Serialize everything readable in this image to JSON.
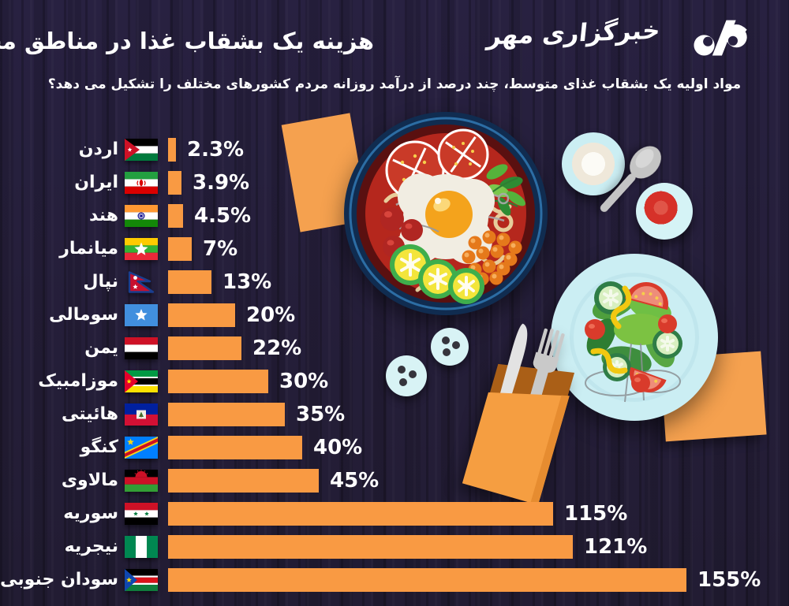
{
  "header": {
    "title": "هزینه یک بشقاب غذا در مناطق مختلف جهان",
    "subtitle": "مواد اولیه یک بشقاب غذای متوسط، چند درصد از درآمد روزانه مردم کشورهای مختلف را تشکیل می دهد؟",
    "agency_name": "خبرگزاری مهر"
  },
  "colors": {
    "background": "#272040",
    "bar": "#F99A43",
    "text": "#FFFFFF",
    "napkin": "#F5A14F"
  },
  "icons": [
    "mehr-logo-mark",
    "ramen-bowl",
    "side-plate",
    "spoon",
    "sauce-dish",
    "salad-plate",
    "salt-shaker",
    "pepper-shaker",
    "cutlery-pocket",
    "napkin",
    "country-flags"
  ],
  "chart_data": {
    "type": "bar",
    "orientation": "horizontal",
    "title": "هزینه یک بشقاب غذا در مناطق مختلف جهان",
    "xlabel": "",
    "ylabel": "",
    "value_unit": "%",
    "xlim": [
      0,
      160
    ],
    "grid": false,
    "legend": false,
    "rows": [
      {
        "label": "اردن",
        "flag": "jordan",
        "value": 2.3,
        "value_label": "2.3%"
      },
      {
        "label": "ایران",
        "flag": "iran",
        "value": 3.9,
        "value_label": "3.9%"
      },
      {
        "label": "هند",
        "flag": "india",
        "value": 4.5,
        "value_label": "4.5%"
      },
      {
        "label": "میانمار",
        "flag": "myanmar",
        "value": 7,
        "value_label": "7%"
      },
      {
        "label": "نپال",
        "flag": "nepal",
        "value": 13,
        "value_label": "13%"
      },
      {
        "label": "سومالی",
        "flag": "somalia",
        "value": 20,
        "value_label": "20%"
      },
      {
        "label": "یمن",
        "flag": "yemen",
        "value": 22,
        "value_label": "22%"
      },
      {
        "label": "موزامبیک",
        "flag": "mozambique",
        "value": 30,
        "value_label": "30%"
      },
      {
        "label": "هائیتی",
        "flag": "haiti",
        "value": 35,
        "value_label": "35%"
      },
      {
        "label": "کنگو",
        "flag": "drcongo",
        "value": 40,
        "value_label": "40%"
      },
      {
        "label": "مالاوی",
        "flag": "malawi",
        "value": 45,
        "value_label": "45%"
      },
      {
        "label": "سوریه",
        "flag": "syria",
        "value": 115,
        "value_label": "115%"
      },
      {
        "label": "نیجریه",
        "flag": "nigeria",
        "value": 121,
        "value_label": "121%"
      },
      {
        "label": "سودان جنوبی",
        "flag": "southsudan",
        "value": 155,
        "value_label": "155%"
      }
    ]
  }
}
